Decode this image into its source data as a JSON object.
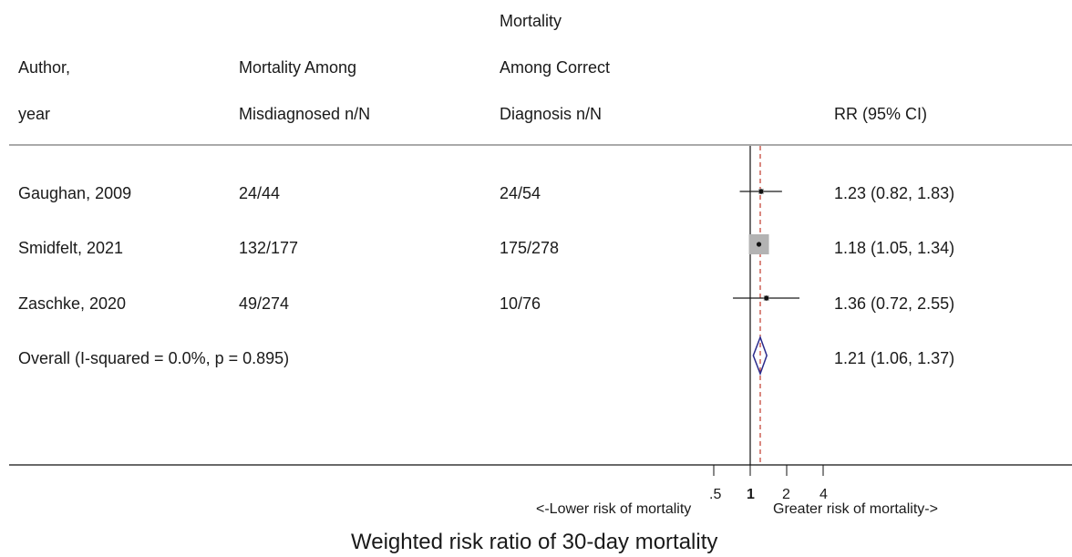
{
  "header": {
    "col_author": [
      "Author,",
      "year"
    ],
    "col_misdiagnosed": [
      "Mortality Among",
      "Misdiagnosed  n/N"
    ],
    "col_correct": [
      "Mortality",
      "Among Correct",
      "Diagnosis  n/N"
    ],
    "col_rr": "RR (95% CI)"
  },
  "rows": [
    {
      "study": "Gaughan, 2009",
      "misdiagnosed": "24/44",
      "correct": "24/54",
      "rr_text": "1.23 (0.82, 1.83)"
    },
    {
      "study": "Smidfelt, 2021",
      "misdiagnosed": "132/177",
      "correct": "175/278",
      "rr_text": "1.18 (1.05, 1.34)"
    },
    {
      "study": "Zaschke, 2020",
      "misdiagnosed": "49/274",
      "correct": "10/76",
      "rr_text": "1.36 (0.72, 2.55)"
    },
    {
      "study": "Overall  (I-squared = 0.0%, p = 0.895)",
      "misdiagnosed": "",
      "correct": "",
      "rr_text": "1.21 (1.06, 1.37)"
    }
  ],
  "axis": {
    "ticks": [
      ".5",
      "1",
      "2",
      "4"
    ],
    "left_label": "<-Lower risk of mortality",
    "right_label": "Greater risk of mortality->",
    "title": "Weighted risk ratio of 30-day mortality"
  },
  "chart_data": {
    "type": "forest",
    "scale": "log",
    "x_ticks": [
      0.5,
      1,
      2,
      4
    ],
    "null_line": 1,
    "pooled_estimate_line": 1.21,
    "studies": [
      {
        "name": "Gaughan, 2009",
        "rr": 1.23,
        "lower": 0.82,
        "upper": 1.83,
        "weight": "small"
      },
      {
        "name": "Smidfelt, 2021",
        "rr": 1.18,
        "lower": 1.05,
        "upper": 1.34,
        "weight": "large"
      },
      {
        "name": "Zaschke, 2020",
        "rr": 1.36,
        "lower": 0.72,
        "upper": 2.55,
        "weight": "small"
      }
    ],
    "overall": {
      "rr": 1.21,
      "lower": 1.06,
      "upper": 1.37
    },
    "colors": {
      "ci_line": "#1a1a1a",
      "weight_box": "#b3b3b3",
      "diamond": "#2a2a8c",
      "pooled_line": "#c0392b"
    }
  }
}
